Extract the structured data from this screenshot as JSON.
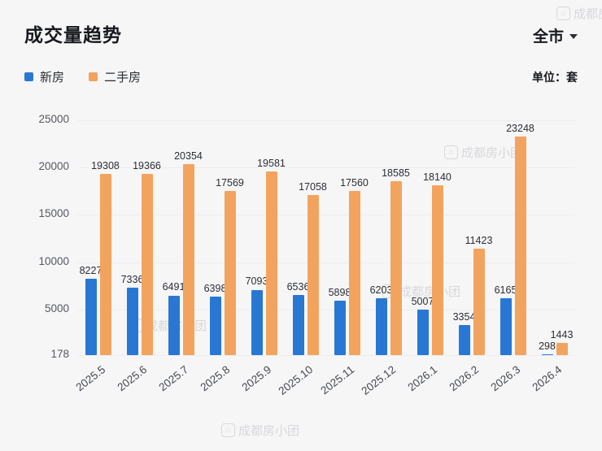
{
  "header": {
    "title": "成交量趋势",
    "region": "全市",
    "unit": "单位：套"
  },
  "watermark": {
    "icon": "⌂",
    "text": "成都房小团"
  },
  "chart_data": {
    "type": "bar",
    "title": "成交量趋势",
    "categories": [
      "2025.5",
      "2025.6",
      "2025.7",
      "2025.8",
      "2025.9",
      "2025.10",
      "2025.11",
      "2025.12",
      "2026.1",
      "2026.2",
      "2026.3",
      "2026.4"
    ],
    "series": [
      {
        "name": "新房",
        "color": "#2878d3",
        "values": [
          8227,
          7336,
          6491,
          6398,
          7093,
          6536,
          5898,
          6203,
          5007,
          3354,
          6165,
          298
        ]
      },
      {
        "name": "二手房",
        "color": "#f2a45e",
        "values": [
          19308,
          19366,
          20354,
          17569,
          19581,
          17058,
          17560,
          18585,
          18140,
          11423,
          23248,
          1443
        ]
      }
    ],
    "y_ticks": [
      25000,
      20000,
      15000,
      10000,
      5000,
      178
    ],
    "ylim": [
      178,
      25000
    ],
    "xlabel": "",
    "ylabel": "单位：套",
    "grid": "faint-horizontal",
    "legend_position": "top-left",
    "value_labels": "above-bars"
  }
}
